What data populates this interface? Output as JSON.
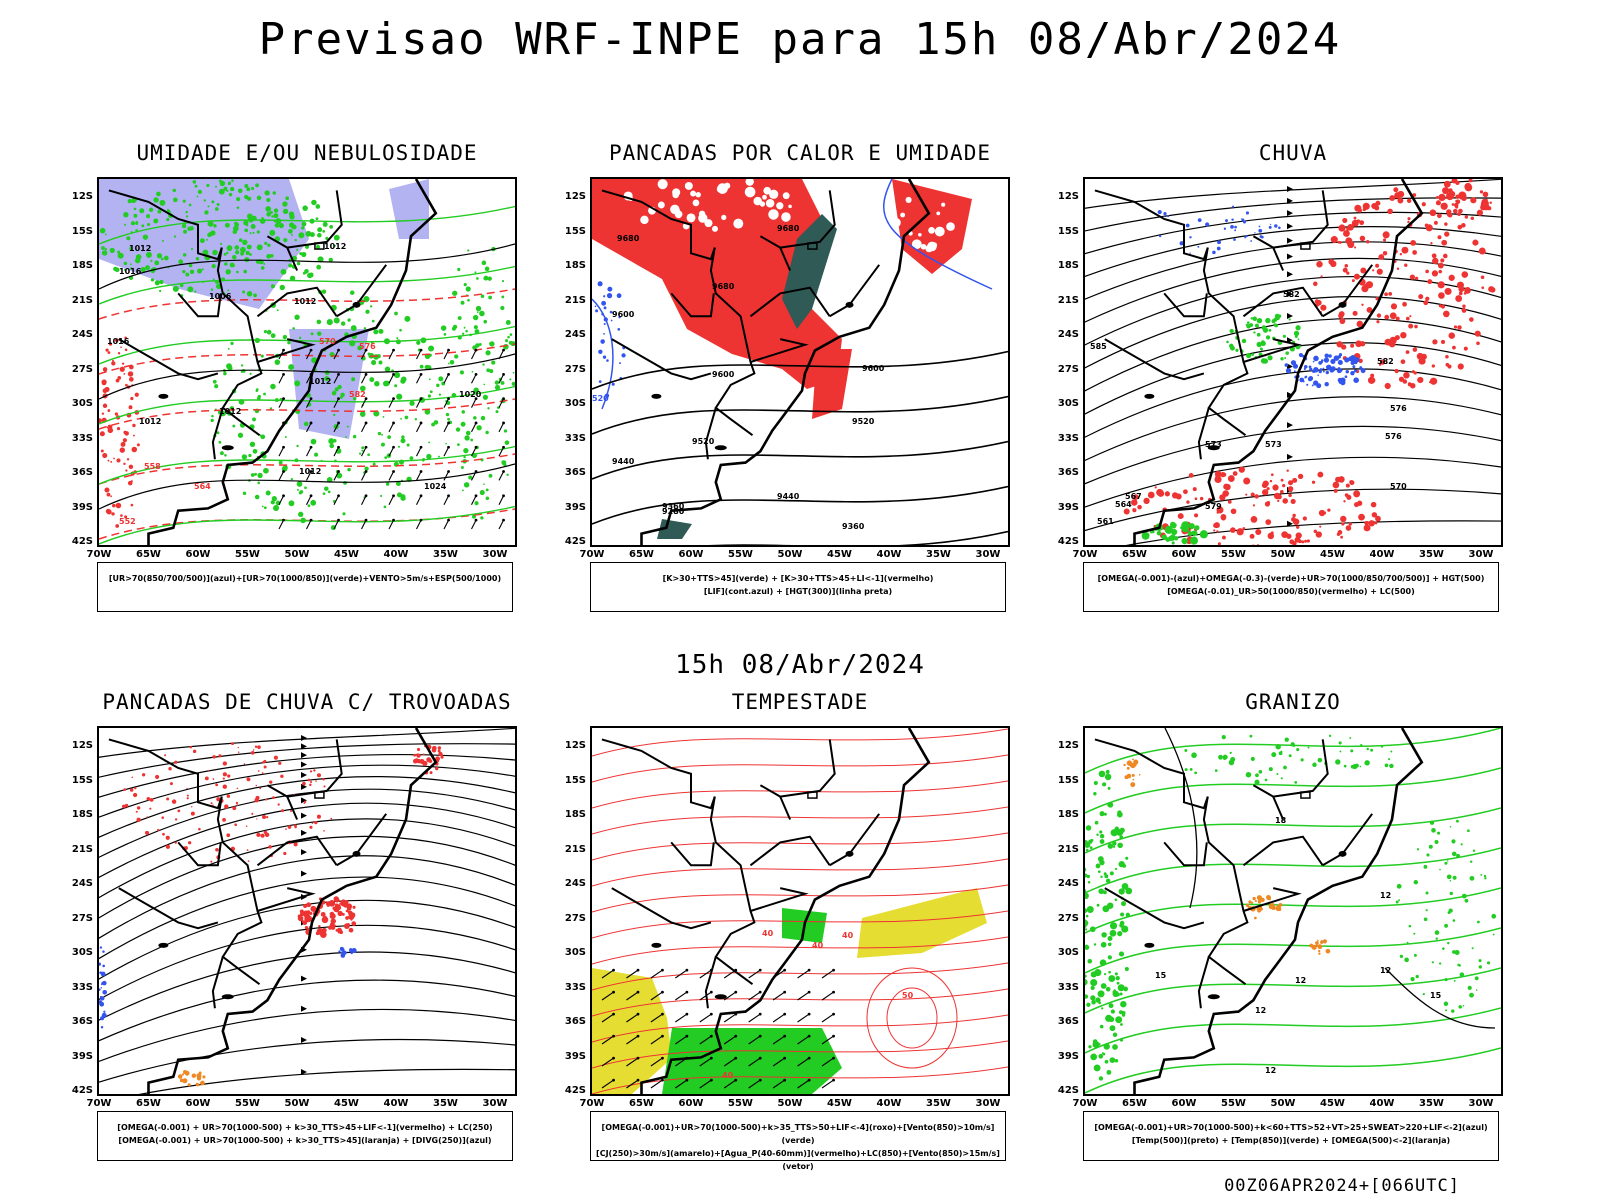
{
  "title": "Previsao WRF-INPE  para 15h 08/Abr/2024",
  "subtitle": "15h 08/Abr/2024",
  "footer": "00Z06APR2024+[066UTC]",
  "axes": {
    "lat": [
      "12S",
      "15S",
      "18S",
      "21S",
      "24S",
      "27S",
      "30S",
      "33S",
      "36S",
      "39S",
      "42S"
    ],
    "lon": [
      "70W",
      "65W",
      "60W",
      "55W",
      "50W",
      "45W",
      "40W",
      "35W",
      "30W"
    ]
  },
  "colors": {
    "green": "#22cc22",
    "red": "#ee3333",
    "blue": "#3355ee",
    "lavender": "#9999ee",
    "orange": "#ee8822",
    "yellow": "#e6dd33",
    "darkteal": "#2f5a55",
    "purple": "#aa33cc"
  },
  "panels": [
    {
      "title": "UMIDADE E/OU NEBULOSIDADE",
      "legend": [
        "[UR>70(850/700/500)](azul)+[UR>70(1000/850)](verde)+VENTO>5m/s+ESP(500/1000)"
      ],
      "contour_labels": [
        "1012",
        "1012",
        "1016",
        "1006",
        "1012",
        "1012",
        "1012",
        "1012",
        "1012",
        "1016",
        "1020",
        "1024",
        "570",
        "576",
        "582",
        "564",
        "558",
        "552"
      ]
    },
    {
      "title": "PANCADAS POR CALOR E UMIDADE",
      "legend": [
        "[K>30+TTS>45](verde) + [K>30+TTS>45+LI<-1](vermelho)",
        "[LIF](cont.azul) + [HGT(300)](linha preta)"
      ],
      "contour_labels": [
        "9680",
        "9680",
        "9680",
        "9600",
        "9600",
        "9600",
        "9520",
        "9520",
        "9440",
        "9440",
        "9360",
        "9280",
        "9360",
        "520"
      ]
    },
    {
      "title": "CHUVA",
      "legend": [
        "[OMEGA(-0.001)-(azul)+OMEGA(-0.3)-(verde)+UR>70(1000/850/700/500)] + HGT(500)",
        "[OMEGA(-0.01)_UR>50(1000/850)(vermelho) + LC(500)"
      ],
      "contour_labels": [
        "582",
        "582",
        "576",
        "576",
        "573",
        "579",
        "573",
        "570",
        "567",
        "564",
        "561",
        "585"
      ]
    },
    {
      "title": "PANCADAS DE CHUVA C/ TROVOADAS",
      "legend": [
        "[OMEGA(-0.001) + UR>70(1000-500) + k>30_TTS>45+LIF<-1](vermelho) + LC(250)",
        "[OMEGA(-0.001) + UR>70(1000-500) + k>30_TTS>45](laranja) + [DIVG(250)](azul)"
      ],
      "contour_labels": []
    },
    {
      "title": "TEMPESTADE",
      "legend": [
        "[OMEGA(-0.001)+UR>70(1000-500)+k>35_TTS>50+LIF<-4](roxo)+[Vento(850)>10m/s](verde)",
        "[CJ(250)>30m/s](amarelo)+[Agua_P(40-60mm)](vermelho)+LC(850)+[Vento(850)>15m/s](vetor)"
      ],
      "contour_labels": [
        "40",
        "40",
        "40",
        "40",
        "50"
      ]
    },
    {
      "title": "GRANIZO",
      "legend": [
        "[OMEGA(-0.001)+UR>70(1000-500)+k<60+TTS>52+VT>25+SWEAT>220+LIF<-2](azul)",
        "[Temp(500)](preto) + [Temp(850)](verde) + [OMEGA(500)<-2](laranja)"
      ],
      "contour_labels": [
        "12",
        "12",
        "12",
        "12",
        "15",
        "15",
        "18",
        "12"
      ]
    }
  ]
}
